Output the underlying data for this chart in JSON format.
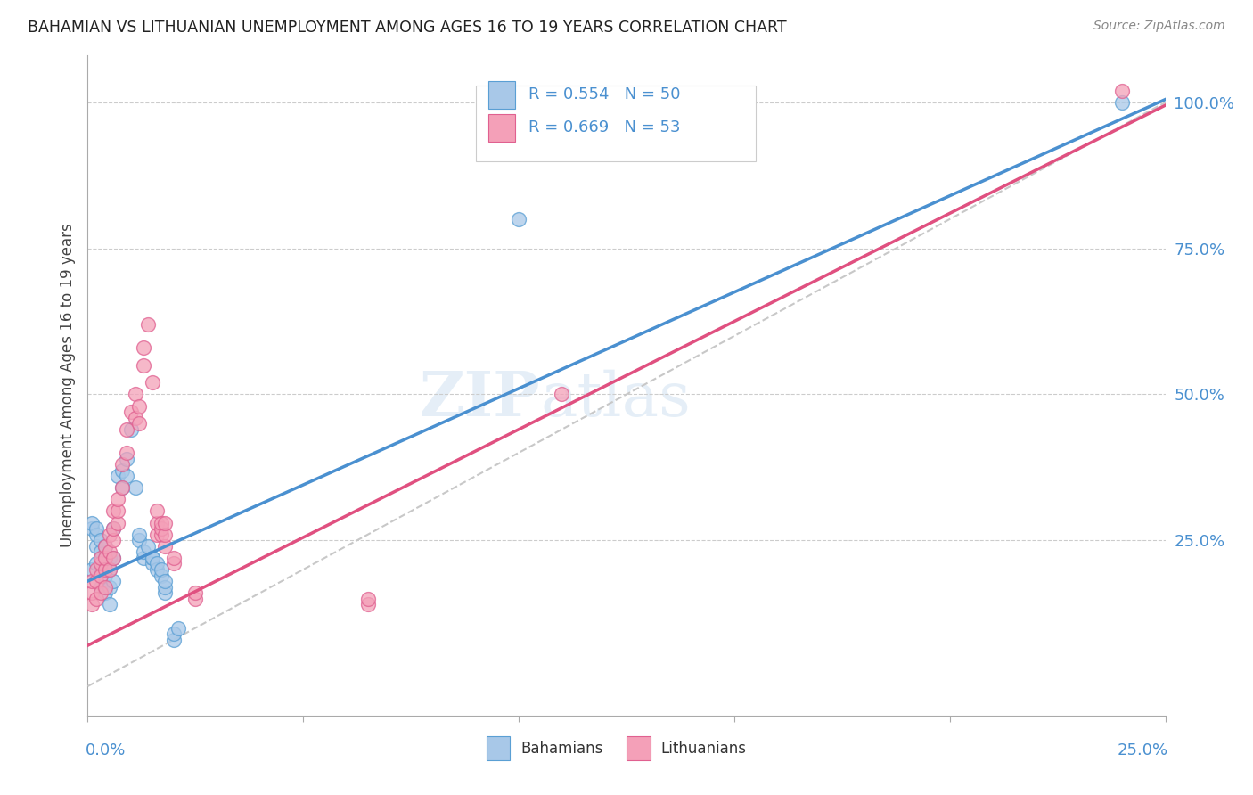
{
  "title": "BAHAMIAN VS LITHUANIAN UNEMPLOYMENT AMONG AGES 16 TO 19 YEARS CORRELATION CHART",
  "source": "Source: ZipAtlas.com",
  "ylabel": "Unemployment Among Ages 16 to 19 years",
  "ylabel_right_ticks": [
    "100.0%",
    "75.0%",
    "50.0%",
    "25.0%"
  ],
  "ylabel_right_vals": [
    1.0,
    0.75,
    0.5,
    0.25
  ],
  "watermark": "ZIPatlas",
  "blue_color": "#a8c8e8",
  "pink_color": "#f4a0b8",
  "blue_edge_color": "#5a9fd4",
  "pink_edge_color": "#e06090",
  "reg_line_blue_color": "#4a90d0",
  "reg_line_pink_color": "#e05080",
  "diagonal_color": "#c8c8c8",
  "x_min": 0.0,
  "x_max": 0.25,
  "y_min": -0.05,
  "y_max": 1.08,
  "blue_points": [
    [
      0.001,
      0.2
    ],
    [
      0.001,
      0.27
    ],
    [
      0.001,
      0.28
    ],
    [
      0.002,
      0.21
    ],
    [
      0.002,
      0.24
    ],
    [
      0.002,
      0.26
    ],
    [
      0.002,
      0.27
    ],
    [
      0.003,
      0.17
    ],
    [
      0.003,
      0.2
    ],
    [
      0.003,
      0.22
    ],
    [
      0.003,
      0.23
    ],
    [
      0.003,
      0.25
    ],
    [
      0.004,
      0.16
    ],
    [
      0.004,
      0.19
    ],
    [
      0.004,
      0.21
    ],
    [
      0.004,
      0.22
    ],
    [
      0.004,
      0.24
    ],
    [
      0.005,
      0.14
    ],
    [
      0.005,
      0.17
    ],
    [
      0.005,
      0.2
    ],
    [
      0.005,
      0.22
    ],
    [
      0.006,
      0.18
    ],
    [
      0.006,
      0.22
    ],
    [
      0.006,
      0.27
    ],
    [
      0.007,
      0.36
    ],
    [
      0.008,
      0.34
    ],
    [
      0.008,
      0.37
    ],
    [
      0.009,
      0.36
    ],
    [
      0.009,
      0.39
    ],
    [
      0.01,
      0.44
    ],
    [
      0.011,
      0.34
    ],
    [
      0.012,
      0.25
    ],
    [
      0.012,
      0.26
    ],
    [
      0.013,
      0.22
    ],
    [
      0.013,
      0.23
    ],
    [
      0.014,
      0.24
    ],
    [
      0.015,
      0.21
    ],
    [
      0.015,
      0.22
    ],
    [
      0.015,
      0.22
    ],
    [
      0.016,
      0.2
    ],
    [
      0.016,
      0.21
    ],
    [
      0.017,
      0.19
    ],
    [
      0.017,
      0.2
    ],
    [
      0.018,
      0.16
    ],
    [
      0.018,
      0.17
    ],
    [
      0.018,
      0.18
    ],
    [
      0.02,
      0.08
    ],
    [
      0.02,
      0.09
    ],
    [
      0.021,
      0.1
    ],
    [
      0.1,
      0.8
    ],
    [
      0.24,
      1.0
    ]
  ],
  "pink_points": [
    [
      0.001,
      0.14
    ],
    [
      0.001,
      0.16
    ],
    [
      0.001,
      0.18
    ],
    [
      0.002,
      0.15
    ],
    [
      0.002,
      0.18
    ],
    [
      0.002,
      0.2
    ],
    [
      0.003,
      0.16
    ],
    [
      0.003,
      0.19
    ],
    [
      0.003,
      0.21
    ],
    [
      0.003,
      0.22
    ],
    [
      0.004,
      0.17
    ],
    [
      0.004,
      0.2
    ],
    [
      0.004,
      0.22
    ],
    [
      0.004,
      0.24
    ],
    [
      0.005,
      0.2
    ],
    [
      0.005,
      0.23
    ],
    [
      0.005,
      0.26
    ],
    [
      0.006,
      0.22
    ],
    [
      0.006,
      0.25
    ],
    [
      0.006,
      0.27
    ],
    [
      0.006,
      0.3
    ],
    [
      0.007,
      0.28
    ],
    [
      0.007,
      0.3
    ],
    [
      0.007,
      0.32
    ],
    [
      0.008,
      0.34
    ],
    [
      0.008,
      0.38
    ],
    [
      0.009,
      0.4
    ],
    [
      0.009,
      0.44
    ],
    [
      0.01,
      0.47
    ],
    [
      0.011,
      0.46
    ],
    [
      0.011,
      0.5
    ],
    [
      0.012,
      0.45
    ],
    [
      0.012,
      0.48
    ],
    [
      0.013,
      0.55
    ],
    [
      0.013,
      0.58
    ],
    [
      0.014,
      0.62
    ],
    [
      0.015,
      0.52
    ],
    [
      0.016,
      0.26
    ],
    [
      0.016,
      0.28
    ],
    [
      0.016,
      0.3
    ],
    [
      0.017,
      0.26
    ],
    [
      0.017,
      0.27
    ],
    [
      0.017,
      0.28
    ],
    [
      0.018,
      0.24
    ],
    [
      0.018,
      0.26
    ],
    [
      0.018,
      0.28
    ],
    [
      0.02,
      0.21
    ],
    [
      0.02,
      0.22
    ],
    [
      0.025,
      0.15
    ],
    [
      0.025,
      0.16
    ],
    [
      0.065,
      0.14
    ],
    [
      0.065,
      0.15
    ],
    [
      0.11,
      0.5
    ],
    [
      0.24,
      1.02
    ]
  ]
}
